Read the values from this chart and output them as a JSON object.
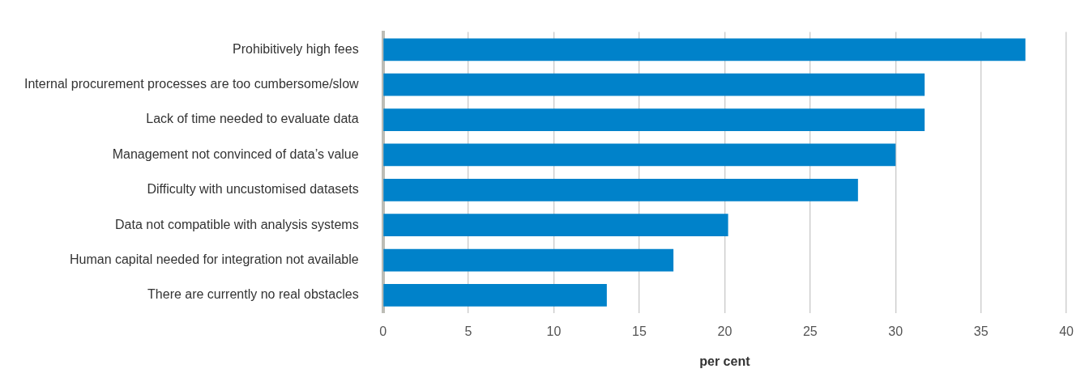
{
  "chart_data": {
    "type": "bar",
    "orientation": "horizontal",
    "categories": [
      "Prohibitively high fees",
      "Internal procurement processes are too cumbersome/slow",
      "Lack of time needed to evaluate data",
      "Management not convinced of data’s value",
      "Difficulty with uncustomised datasets",
      "Data not compatible with analysis systems",
      "Human capital needed for integration not available",
      "There are currently no real obstacles"
    ],
    "values": [
      37.6,
      31.7,
      31.7,
      30,
      27.8,
      20.2,
      17,
      13.1
    ],
    "color": "#0082ca",
    "xlim": [
      0,
      40
    ],
    "xticks": [
      0,
      5,
      10,
      15,
      20,
      25,
      30,
      35,
      40
    ],
    "xlabel": "per cent",
    "grid": "x",
    "legend": false
  }
}
